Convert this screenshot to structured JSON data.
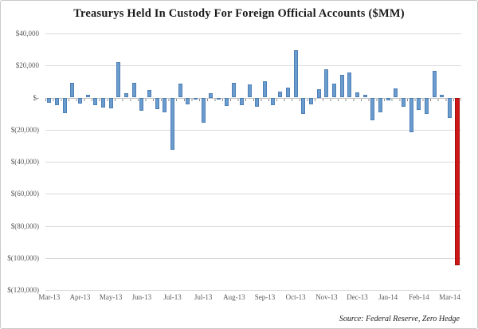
{
  "title": "Treasurys Held In Custody For Foreign Official Accounts ($MM)",
  "source": "Source: Federal Reserve, Zero Hedge",
  "colors": {
    "bar_fill": "#6b9cce",
    "bar_border": "#4e7fb5",
    "highlight_fill": "#cf1717",
    "highlight_border": "#9e0f0f",
    "gridline": "#d9d9d9",
    "axis_text": "#595959"
  },
  "chart_data": {
    "type": "bar",
    "title": "Treasurys Held In Custody For Foreign Official Accounts ($MM)",
    "xlabel": "",
    "ylabel": "",
    "ylim": [
      -120000,
      40000
    ],
    "y_gridline_step": 20000,
    "grid": true,
    "legend": false,
    "y_tick_labels": [
      "$40,000",
      "$20,000",
      "$-",
      "$(20,000)",
      "$(40,000)",
      "$(60,000)",
      "$(80,000)",
      "$(100,000)",
      "$(120,000)"
    ],
    "y_tick_values": [
      40000,
      20000,
      0,
      -20000,
      -40000,
      -60000,
      -80000,
      -100000,
      -120000
    ],
    "x_tick_labels": [
      "Mar-13",
      "Apr-13",
      "May-13",
      "Jun-13",
      "Jul-13",
      "Jul-13",
      "Aug-13",
      "Sep-13",
      "Oct-13",
      "Nov-13",
      "Dec-13",
      "Jan-14",
      "Feb-14",
      "Mar-14"
    ],
    "x_tick_every_n_bars": 4,
    "values": [
      -3000,
      -4500,
      -9800,
      9000,
      -3500,
      1800,
      -4800,
      -6000,
      -6500,
      22300,
      2700,
      9300,
      -8100,
      4500,
      -7400,
      -9000,
      -32300,
      8800,
      -4200,
      -800,
      -15800,
      2500,
      -500,
      -5000,
      9300,
      -4800,
      8100,
      -5600,
      10400,
      -4500,
      3500,
      6000,
      29800,
      -10000,
      -4200,
      5000,
      17400,
      8800,
      14100,
      15800,
      3300,
      1500,
      -14000,
      -9000,
      -1700,
      5800,
      -5800,
      -21600,
      -7500,
      -10400,
      16700,
      1700,
      -12500,
      -104500
    ],
    "highlight_last_bar": true,
    "series_color_note": "all bars steel blue except final bar red"
  }
}
